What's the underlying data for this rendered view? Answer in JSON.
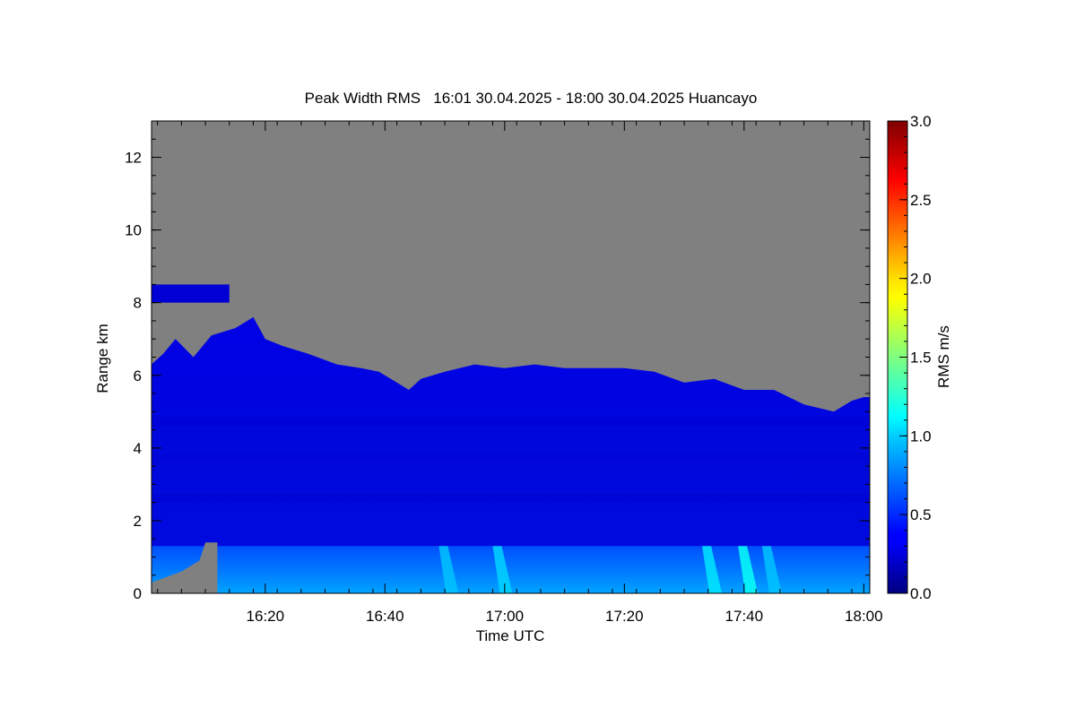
{
  "chart_data": {
    "type": "heatmap",
    "title": "Peak Width RMS   16:01 30.04.2025 - 18:00 30.04.2025 Huancayo",
    "xlabel": "Time UTC",
    "ylabel": "Range km",
    "colorbar_label": "RMS m/s",
    "x_range_minutes_utc": [
      961,
      1081
    ],
    "x_ticks": [
      {
        "label": "16:20",
        "value": 980
      },
      {
        "label": "16:40",
        "value": 1000
      },
      {
        "label": "17:00",
        "value": 1020
      },
      {
        "label": "17:20",
        "value": 1040
      },
      {
        "label": "17:40",
        "value": 1060
      },
      {
        "label": "18:00",
        "value": 1080
      }
    ],
    "ylim": [
      0,
      13
    ],
    "y_ticks": [
      0,
      2,
      4,
      6,
      8,
      10,
      12
    ],
    "colorbar": {
      "range": [
        0.0,
        3.0
      ],
      "ticks": [
        "0.0",
        "0.5",
        "1.0",
        "1.5",
        "2.0",
        "2.5",
        "3.0"
      ],
      "colormap": "jet"
    },
    "no_data_color": "#808080",
    "upper_signal_boundary_km": [
      [
        961,
        6.3
      ],
      [
        963,
        6.6
      ],
      [
        965,
        7.0
      ],
      [
        968,
        6.5
      ],
      [
        971,
        7.1
      ],
      [
        975,
        7.3
      ],
      [
        978,
        7.6
      ],
      [
        980,
        7.0
      ],
      [
        983,
        6.8
      ],
      [
        987,
        6.6
      ],
      [
        992,
        6.3
      ],
      [
        996,
        6.2
      ],
      [
        999,
        6.1
      ],
      [
        1002,
        5.8
      ],
      [
        1004,
        5.6
      ],
      [
        1006,
        5.9
      ],
      [
        1010,
        6.1
      ],
      [
        1015,
        6.3
      ],
      [
        1020,
        6.2
      ],
      [
        1025,
        6.3
      ],
      [
        1030,
        6.2
      ],
      [
        1035,
        6.2
      ],
      [
        1040,
        6.2
      ],
      [
        1045,
        6.1
      ],
      [
        1050,
        5.8
      ],
      [
        1055,
        5.9
      ],
      [
        1060,
        5.6
      ],
      [
        1065,
        5.6
      ],
      [
        1070,
        5.2
      ],
      [
        1075,
        5.0
      ],
      [
        1078,
        5.3
      ],
      [
        1080,
        5.4
      ]
    ],
    "isolated_layer_km": {
      "time_range": [
        961,
        974
      ],
      "range_km": [
        8.0,
        8.5
      ],
      "rms": 0.25
    },
    "bulk_rms_below_boundary": 0.25,
    "boundary_layer": {
      "top_km": 1.3,
      "rms_range": [
        0.6,
        1.2
      ]
    },
    "bright_streaks": [
      {
        "time": 1009,
        "rms": 0.95
      },
      {
        "time": 1018,
        "rms": 1.0
      },
      {
        "time": 1053,
        "rms": 1.05
      },
      {
        "time": 1059,
        "rms": 1.15
      },
      {
        "time": 1063,
        "rms": 0.95
      }
    ]
  },
  "colors": {
    "no_data": "#808080",
    "axis": "#000000",
    "background": "#ffffff"
  }
}
